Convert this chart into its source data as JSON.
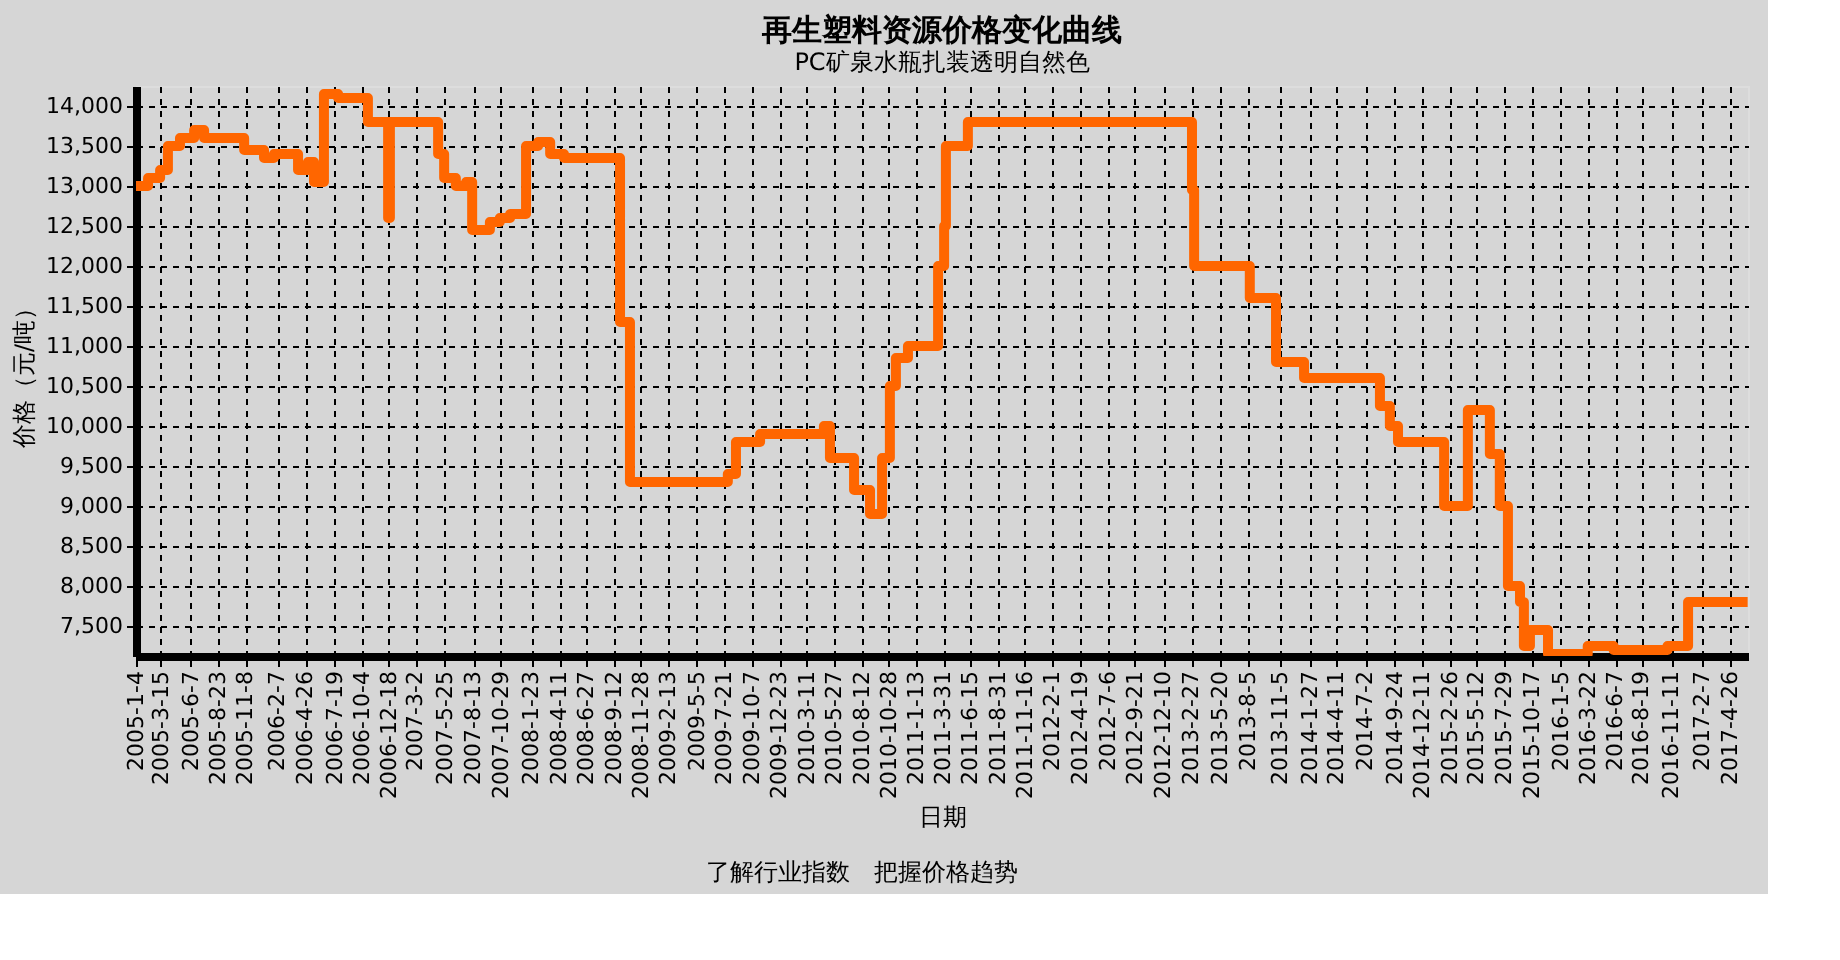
{
  "chart_data": {
    "type": "step",
    "title": "再生塑料资源价格变化曲线",
    "subtitle": "PC矿泉水瓶扎装透明自然色",
    "xlabel": "日期",
    "ylabel": "价格（元/吨）",
    "annotations": [
      "了解行业指数　把握价格趋势"
    ],
    "x": [
      "2005-01-04",
      "2005-02-07",
      "2005-03-13",
      "2005-04-04",
      "2005-05-08",
      "2005-06-17",
      "2005-07-15",
      "2005-11-05",
      "2005-12-31",
      "2006-01-28",
      "2006-04-06",
      "2006-05-04",
      "2006-05-21",
      "2006-06-18",
      "2006-07-28",
      "2006-10-20",
      "2006-12-16",
      "2006-12-21",
      "2007-05-06",
      "2007-05-23",
      "2007-06-25",
      "2007-07-24",
      "2007-08-10",
      "2007-09-29",
      "2007-10-27",
      "2007-11-25",
      "2008-01-09",
      "2008-02-12",
      "2008-03-17",
      "2008-04-25",
      "2008-09-30",
      "2008-10-28",
      "2009-07-31",
      "2009-08-23",
      "2009-10-30",
      "2010-04-28",
      "2010-05-15",
      "2010-07-22",
      "2010-09-05",
      "2010-10-09",
      "2010-10-31",
      "2010-11-17",
      "2010-12-21",
      "2011-03-16",
      "2011-04-02",
      "2011-04-07",
      "2011-06-08",
      "2013-03-01",
      "2013-03-07",
      "2013-08-11",
      "2013-10-24",
      "2014-01-11",
      "2014-08-13",
      "2014-09-10",
      "2014-10-03",
      "2015-02-10",
      "2015-04-18",
      "2015-06-19",
      "2015-07-17",
      "2015-08-09",
      "2015-09-12",
      "2015-09-23",
      "2015-10-10",
      "2015-11-30",
      "2016-03-21",
      "2016-06-02",
      "2016-11-01",
      "2016-12-29",
      "2017-06-15"
    ],
    "series": [
      {
        "color": "#ff6600",
        "values": [
          13000,
          13100,
          13200,
          13500,
          13600,
          13700,
          13600,
          13450,
          13350,
          13400,
          13200,
          13300,
          13050,
          14150,
          14100,
          13800,
          12600,
          13800,
          13400,
          13100,
          13000,
          13050,
          12450,
          12550,
          12600,
          12650,
          13500,
          13550,
          13400,
          13350,
          11300,
          9300,
          9400,
          9800,
          9900,
          10000,
          9600,
          9200,
          8900,
          9600,
          10500,
          10850,
          11000,
          12000,
          12500,
          13500,
          13800,
          12950,
          12000,
          11600,
          10800,
          10600,
          10250,
          10000,
          9800,
          9000,
          10200,
          9650,
          9000,
          8000,
          7800,
          7250,
          7450,
          7150,
          7250,
          7200,
          7250,
          7800,
          7800
        ]
      }
    ],
    "xlim": [
      "2005-01-04",
      "2017-06-16"
    ],
    "xticks": [
      {
        "value": "2005-01-04",
        "label": "2005-1-4"
      },
      {
        "value": "2005-03-15",
        "label": "2005-3-15"
      },
      {
        "value": "2005-06-07",
        "label": "2005-6-7"
      },
      {
        "value": "2005-08-23",
        "label": "2005-8-23"
      },
      {
        "value": "2005-11-08",
        "label": "2005-11-8"
      },
      {
        "value": "2006-02-07",
        "label": "2006-2-7"
      },
      {
        "value": "2006-04-26",
        "label": "2006-4-26"
      },
      {
        "value": "2006-07-19",
        "label": "2006-7-19"
      },
      {
        "value": "2006-10-04",
        "label": "2006-10-4"
      },
      {
        "value": "2006-12-18",
        "label": "2006-12-18"
      },
      {
        "value": "2007-03-02",
        "label": "2007-3-2"
      },
      {
        "value": "2007-05-25",
        "label": "2007-5-25"
      },
      {
        "value": "2007-08-13",
        "label": "2007-8-13"
      },
      {
        "value": "2007-10-29",
        "label": "2007-10-29"
      },
      {
        "value": "2008-01-23",
        "label": "2008-1-23"
      },
      {
        "value": "2008-04-11",
        "label": "2008-4-11"
      },
      {
        "value": "2008-06-27",
        "label": "2008-6-27"
      },
      {
        "value": "2008-09-12",
        "label": "2008-9-12"
      },
      {
        "value": "2008-11-28",
        "label": "2008-11-28"
      },
      {
        "value": "2009-02-13",
        "label": "2009-2-13"
      },
      {
        "value": "2009-05-05",
        "label": "2009-5-5"
      },
      {
        "value": "2009-07-21",
        "label": "2009-7-21"
      },
      {
        "value": "2009-10-07",
        "label": "2009-10-7"
      },
      {
        "value": "2009-12-23",
        "label": "2009-12-23"
      },
      {
        "value": "2010-03-11",
        "label": "2010-3-11"
      },
      {
        "value": "2010-05-27",
        "label": "2010-5-27"
      },
      {
        "value": "2010-08-12",
        "label": "2010-8-12"
      },
      {
        "value": "2010-10-28",
        "label": "2010-10-28"
      },
      {
        "value": "2011-01-13",
        "label": "2011-1-13"
      },
      {
        "value": "2011-03-31",
        "label": "2011-3-31"
      },
      {
        "value": "2011-06-15",
        "label": "2011-6-15"
      },
      {
        "value": "2011-08-31",
        "label": "2011-8-31"
      },
      {
        "value": "2011-11-16",
        "label": "2011-11-16"
      },
      {
        "value": "2012-02-01",
        "label": "2012-2-1"
      },
      {
        "value": "2012-04-19",
        "label": "2012-4-19"
      },
      {
        "value": "2012-07-06",
        "label": "2012-7-6"
      },
      {
        "value": "2012-09-21",
        "label": "2012-9-21"
      },
      {
        "value": "2012-12-10",
        "label": "2012-12-10"
      },
      {
        "value": "2013-02-27",
        "label": "2013-2-27"
      },
      {
        "value": "2013-05-20",
        "label": "2013-5-20"
      },
      {
        "value": "2013-08-05",
        "label": "2013-8-5"
      },
      {
        "value": "2013-11-05",
        "label": "2013-11-5"
      },
      {
        "value": "2014-01-27",
        "label": "2014-1-27"
      },
      {
        "value": "2014-04-11",
        "label": "2014-4-11"
      },
      {
        "value": "2014-07-02",
        "label": "2014-7-2"
      },
      {
        "value": "2014-09-24",
        "label": "2014-9-24"
      },
      {
        "value": "2014-12-11",
        "label": "2014-12-11"
      },
      {
        "value": "2015-02-26",
        "label": "2015-2-26"
      },
      {
        "value": "2015-05-12",
        "label": "2015-5-12"
      },
      {
        "value": "2015-07-29",
        "label": "2015-7-29"
      },
      {
        "value": "2015-10-17",
        "label": "2015-10-17"
      },
      {
        "value": "2016-01-05",
        "label": "2016-1-5"
      },
      {
        "value": "2016-03-22",
        "label": "2016-3-22"
      },
      {
        "value": "2016-06-07",
        "label": "2016-6-7"
      },
      {
        "value": "2016-08-19",
        "label": "2016-8-19"
      },
      {
        "value": "2016-11-11",
        "label": "2016-11-11"
      },
      {
        "value": "2017-02-07",
        "label": "2017-2-7"
      },
      {
        "value": "2017-04-26",
        "label": "2017-4-26"
      }
    ],
    "ylim": [
      7125,
      14250
    ],
    "yticks": [
      {
        "value": 7500,
        "label": "7,500"
      },
      {
        "value": 8000,
        "label": "8,000"
      },
      {
        "value": 8500,
        "label": "8,500"
      },
      {
        "value": 9000,
        "label": "9,000"
      },
      {
        "value": 9500,
        "label": "9,500"
      },
      {
        "value": 10000,
        "label": "10,000"
      },
      {
        "value": 10500,
        "label": "10,500"
      },
      {
        "value": 11000,
        "label": "11,000"
      },
      {
        "value": 11500,
        "label": "11,500"
      },
      {
        "value": 12000,
        "label": "12,000"
      },
      {
        "value": 12500,
        "label": "12,500"
      },
      {
        "value": 13000,
        "label": "13,000"
      },
      {
        "value": 13500,
        "label": "13,500"
      },
      {
        "value": 14000,
        "label": "14,000"
      }
    ],
    "grid": true,
    "line_style": "solid",
    "marker": "none"
  }
}
